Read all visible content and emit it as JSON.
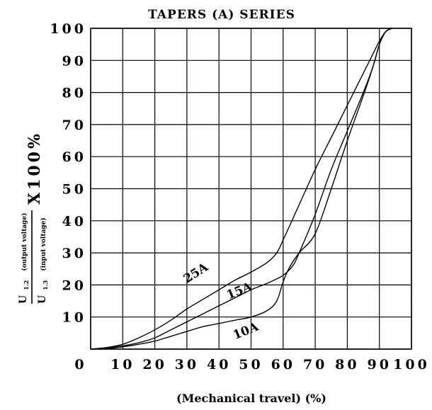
{
  "chart_data": {
    "type": "line",
    "title": "TAPERS (A) SERIES",
    "xlabel": "(Mechanical travel) (%)",
    "ylabel": {
      "numerator_main": "U",
      "numerator_sub": "1.2",
      "numerator_note": "(output voltage)",
      "denominator_main": "U",
      "denominator_sub": "1.3",
      "denominator_note": "(input voltage)",
      "multiplier": "X100%"
    },
    "x_ticks": [
      "0",
      "10",
      "20",
      "30",
      "40",
      "50",
      "60",
      "70",
      "80",
      "90",
      "100"
    ],
    "y_ticks": [
      "10",
      "20",
      "30",
      "40",
      "50",
      "60",
      "70",
      "80",
      "90",
      "100"
    ],
    "xlim": [
      0,
      100
    ],
    "ylim": [
      0,
      100
    ],
    "grid": true,
    "series": [
      {
        "name": "25A",
        "x": [
          0,
          5,
          10,
          15,
          20,
          25,
          30,
          35,
          40,
          45,
          50,
          55,
          58,
          60,
          65,
          70,
          75,
          80,
          85,
          88,
          90,
          92,
          94
        ],
        "y": [
          0,
          0.5,
          1.5,
          3.5,
          6,
          9,
          12.5,
          15.5,
          18.5,
          21.5,
          24,
          27,
          30,
          34,
          45,
          56,
          66,
          76,
          86,
          92,
          96,
          99,
          100
        ]
      },
      {
        "name": "15A",
        "x": [
          0,
          5,
          10,
          15,
          20,
          25,
          30,
          35,
          40,
          45,
          50,
          55,
          60,
          63,
          65,
          70,
          75,
          80,
          85,
          88,
          90,
          92,
          94
        ],
        "y": [
          0,
          0.3,
          1,
          2,
          3.5,
          6,
          8.5,
          11,
          13.5,
          16,
          18.5,
          20.5,
          23,
          26,
          30,
          42,
          56,
          68,
          80,
          88,
          95,
          99,
          100
        ]
      },
      {
        "name": "10A",
        "x": [
          0,
          5,
          10,
          15,
          20,
          25,
          30,
          35,
          40,
          45,
          50,
          55,
          58,
          60,
          62,
          65,
          70,
          75,
          80,
          85,
          88,
          90,
          92,
          94
        ],
        "y": [
          0,
          0.2,
          0.7,
          1.5,
          2.5,
          4,
          5.5,
          7,
          8,
          9,
          10,
          12,
          15,
          21,
          25.5,
          30,
          36,
          50,
          65,
          79,
          88,
          95,
          99,
          100
        ]
      }
    ]
  }
}
